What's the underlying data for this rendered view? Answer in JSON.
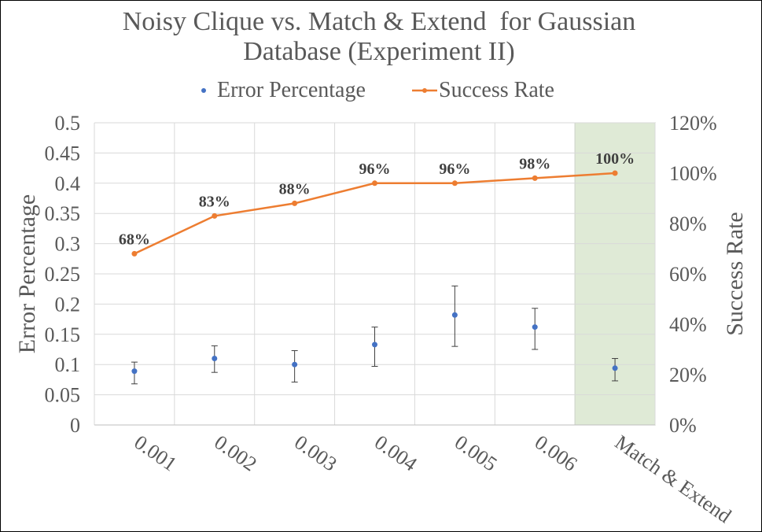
{
  "chart_data": {
    "type": "line",
    "title_line1": "Noisy Clique vs. Match & Extend  for Gaussian",
    "title_line2": "Database (Experiment II)",
    "categories": [
      "0.001",
      "0.002",
      "0.003",
      "0.004",
      "0.005",
      "0.006",
      "Match & Extend"
    ],
    "highlighted_category": "Match & Extend",
    "highlight_color": "#dfead6",
    "legend_position": "top",
    "grid": true,
    "y_left": {
      "label": "Error Percentage",
      "ylim": [
        0,
        0.5
      ],
      "ticks": [
        "0",
        "0.05",
        "0.1",
        "0.15",
        "0.2",
        "0.25",
        "0.3",
        "0.35",
        "0.4",
        "0.45",
        "0.5"
      ]
    },
    "y_right": {
      "label": "Success Rate",
      "ylim": [
        0,
        120
      ],
      "ticks": [
        "0%",
        "20%",
        "40%",
        "60%",
        "80%",
        "100%",
        "120%"
      ]
    },
    "series": [
      {
        "name": "Error Percentage",
        "kind": "scatter",
        "axis": "left",
        "color": "#4472c4",
        "values": [
          0.089,
          0.11,
          0.1,
          0.133,
          0.182,
          0.162,
          0.094
        ],
        "error_low": [
          0.068,
          0.087,
          0.071,
          0.097,
          0.13,
          0.125,
          0.073
        ],
        "error_high": [
          0.104,
          0.131,
          0.123,
          0.162,
          0.23,
          0.193,
          0.11
        ]
      },
      {
        "name": "Success Rate",
        "kind": "line",
        "axis": "right",
        "color": "#ed7d31",
        "values": [
          68,
          83,
          88,
          96,
          96,
          98,
          100
        ],
        "data_labels": [
          "68%",
          "83%",
          "88%",
          "96%",
          "96%",
          "98%",
          "100%"
        ]
      }
    ]
  }
}
